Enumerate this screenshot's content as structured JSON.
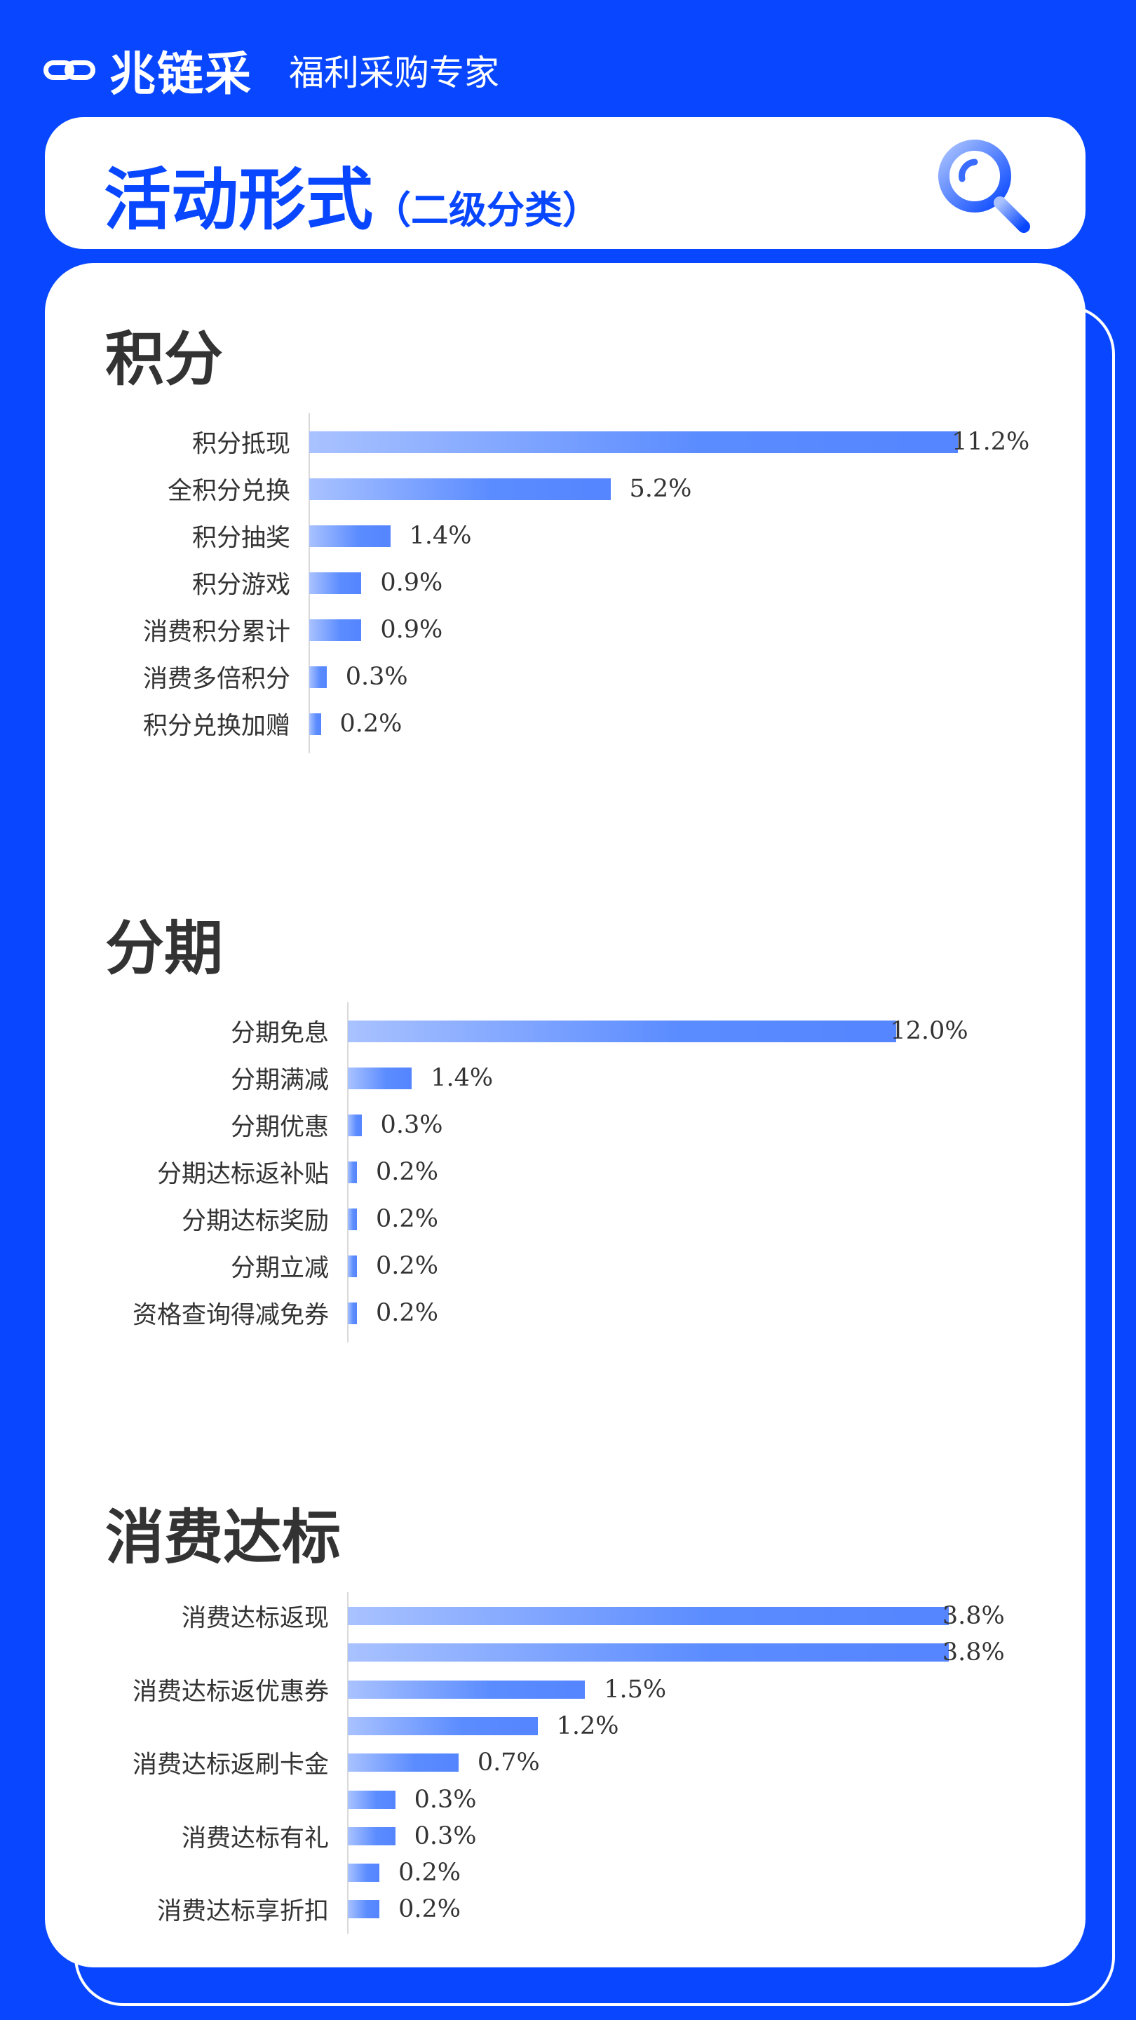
{
  "header": {
    "brand": "兆链采",
    "slogan": "福利采购专家",
    "logo_icon": "link-icon"
  },
  "title_card": {
    "title": "活动形式",
    "subtitle": "（二级分类）",
    "icon": "magnifier-icon"
  },
  "colors": {
    "background": "#0847ff",
    "bar_start": "#a9c2ff",
    "bar_end": "#5585ff",
    "text": "#333333"
  },
  "chart_data": [
    {
      "type": "bar",
      "orientation": "horizontal",
      "title": "积分",
      "categories": [
        "积分抵现",
        "全积分兑换",
        "积分抽奖",
        "积分游戏",
        "消费积分累计",
        "消费多倍积分",
        "积分兑换加赠"
      ],
      "values": [
        11.2,
        5.2,
        1.4,
        0.9,
        0.9,
        0.3,
        0.2
      ],
      "labels": [
        "11.2%",
        "5.2%",
        "1.4%",
        "0.9%",
        "0.9%",
        "0.3%",
        "0.2%"
      ]
    },
    {
      "type": "bar",
      "orientation": "horizontal",
      "title": "分期",
      "categories": [
        "分期免息",
        "分期满减",
        "分期优惠",
        "分期达标返补贴",
        "分期达标奖励",
        "分期立减",
        "资格查询得减免券"
      ],
      "values": [
        12.0,
        1.4,
        0.3,
        0.2,
        0.2,
        0.2,
        0.2
      ],
      "labels": [
        "12.0%",
        "1.4%",
        "0.3%",
        "0.2%",
        "0.2%",
        "0.2%",
        "0.2%"
      ]
    },
    {
      "type": "bar",
      "orientation": "horizontal",
      "title": "消费达标",
      "categories": [
        "消费达标返现",
        "",
        "消费达标返优惠券",
        "",
        "消费达标返刷卡金",
        "",
        "消费达标有礼",
        "",
        "消费达标享折扣"
      ],
      "values": [
        3.8,
        3.8,
        1.5,
        1.2,
        0.7,
        0.3,
        0.3,
        0.2,
        0.2
      ],
      "labels": [
        "3.8%",
        "3.8%",
        "1.5%",
        "1.2%",
        "0.7%",
        "0.3%",
        "0.3%",
        "0.2%",
        "0.2%"
      ]
    }
  ]
}
